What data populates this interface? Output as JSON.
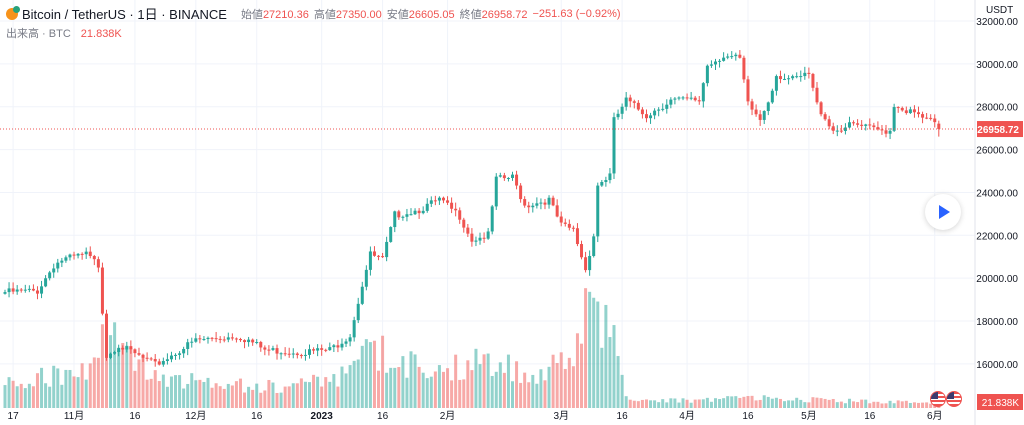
{
  "header": {
    "symbol": "Bitcoin / TetherUS · 1日 · BINANCE",
    "open_label": "始値",
    "open": "27210.36",
    "high_label": "高値",
    "high": "27350.00",
    "low_label": "安値",
    "low": "26605.05",
    "close_label": "終値",
    "close": "26958.72",
    "change": "−251.63 (−0.92%)",
    "volume_label": "出来高 · BTC",
    "volume": "21.838K"
  },
  "colors": {
    "up": "#26a69a",
    "down": "#ef5350",
    "accent": "#2962ff"
  },
  "chart_data": {
    "type": "candlestick",
    "title": "Bitcoin / TetherUS · 1日 · BINANCE",
    "start_date": "2022-10-15",
    "days": 231,
    "ylabel": "USDT",
    "ylim": [
      15300,
      32600
    ],
    "yticks": [
      "32000.00",
      "30000.00",
      "28000.00",
      "26000.00",
      "24000.00",
      "22000.00",
      "20000.00",
      "18000.00",
      "16000.00"
    ],
    "xticks": [
      {
        "day": 2,
        "label": "17"
      },
      {
        "day": 17,
        "label": "11月"
      },
      {
        "day": 32,
        "label": "16"
      },
      {
        "day": 47,
        "label": "12月"
      },
      {
        "day": 62,
        "label": "16"
      },
      {
        "day": 78,
        "label": "2023"
      },
      {
        "day": 93,
        "label": "16"
      },
      {
        "day": 109,
        "label": "2月"
      },
      {
        "day": 137,
        "label": "3月"
      },
      {
        "day": 152,
        "label": "16"
      },
      {
        "day": 168,
        "label": "4月"
      },
      {
        "day": 183,
        "label": "16"
      },
      {
        "day": 198,
        "label": "5月"
      },
      {
        "day": 213,
        "label": "16"
      },
      {
        "day": 229,
        "label": "6月"
      }
    ],
    "close_keypoints": [
      [
        0,
        19350
      ],
      [
        8,
        19400
      ],
      [
        12,
        20600
      ],
      [
        14,
        20850
      ],
      [
        20,
        21100
      ],
      [
        23,
        20600
      ],
      [
        24,
        18500
      ],
      [
        25,
        16400
      ],
      [
        28,
        16900
      ],
      [
        30,
        16650
      ],
      [
        37,
        15950
      ],
      [
        41,
        16400
      ],
      [
        47,
        17100
      ],
      [
        57,
        17300
      ],
      [
        60,
        17100
      ],
      [
        64,
        16650
      ],
      [
        73,
        16550
      ],
      [
        80,
        16650
      ],
      [
        85,
        17350
      ],
      [
        88,
        19700
      ],
      [
        90,
        21100
      ],
      [
        93,
        20850
      ],
      [
        96,
        22950
      ],
      [
        102,
        23200
      ],
      [
        107,
        23650
      ],
      [
        112,
        22900
      ],
      [
        115,
        21800
      ],
      [
        119,
        22000
      ],
      [
        121,
        24600
      ],
      [
        125,
        24700
      ],
      [
        128,
        23400
      ],
      [
        134,
        23650
      ],
      [
        137,
        22450
      ],
      [
        140,
        22250
      ],
      [
        143,
        20400
      ],
      [
        145,
        22000
      ],
      [
        146,
        24350
      ],
      [
        149,
        24800
      ],
      [
        150,
        27350
      ],
      [
        153,
        28300
      ],
      [
        158,
        27600
      ],
      [
        164,
        28300
      ],
      [
        171,
        28300
      ],
      [
        173,
        29950
      ],
      [
        177,
        30400
      ],
      [
        181,
        30200
      ],
      [
        183,
        28100
      ],
      [
        186,
        27400
      ],
      [
        188,
        28300
      ],
      [
        190,
        29500
      ],
      [
        194,
        29250
      ],
      [
        198,
        29500
      ],
      [
        200,
        28100
      ],
      [
        204,
        26900
      ],
      [
        209,
        27150
      ],
      [
        215,
        26900
      ],
      [
        218,
        26900
      ],
      [
        219,
        28100
      ],
      [
        229,
        27210.36
      ]
    ],
    "last_candle": {
      "open": 27210.36,
      "high": 27350.0,
      "low": 26605.05,
      "close": 26958.72,
      "volume_k": 21.838
    },
    "volume_keypoints_k": [
      [
        0,
        120
      ],
      [
        20,
        160
      ],
      [
        24,
        350
      ],
      [
        26,
        300
      ],
      [
        35,
        150
      ],
      [
        50,
        110
      ],
      [
        70,
        90
      ],
      [
        85,
        150
      ],
      [
        90,
        260
      ],
      [
        100,
        190
      ],
      [
        110,
        170
      ],
      [
        120,
        210
      ],
      [
        130,
        150
      ],
      [
        140,
        230
      ],
      [
        143,
        400
      ],
      [
        146,
        430
      ],
      [
        150,
        300
      ],
      [
        152,
        170
      ],
      [
        153,
        40
      ],
      [
        170,
        30
      ],
      [
        180,
        45
      ],
      [
        200,
        35
      ],
      [
        220,
        25
      ],
      [
        230,
        22
      ]
    ],
    "current_price_label": "26958.72",
    "current_volume_label": "21.838K"
  }
}
